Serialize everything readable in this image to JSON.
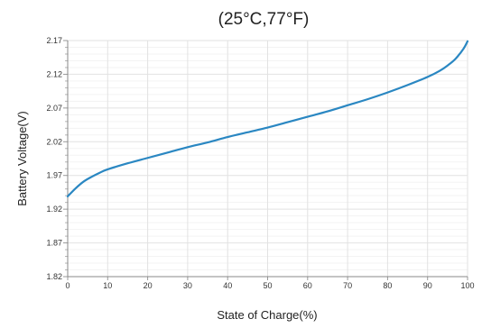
{
  "chart_data": {
    "type": "line",
    "title": "(25°C,77°F)",
    "xlabel": "State of Charge(%)",
    "ylabel": "Battery Voltage(V)",
    "xlim": [
      0,
      100
    ],
    "ylim": [
      1.82,
      2.17
    ],
    "x_ticks": [
      "0",
      "10",
      "20",
      "30",
      "40",
      "50",
      "60",
      "70",
      "80",
      "90",
      "100"
    ],
    "y_ticks": [
      "1.82",
      "1.87",
      "1.92",
      "1.97",
      "2.02",
      "2.07",
      "2.12",
      "2.17"
    ],
    "grid": true,
    "line_color": "#2a87c2",
    "series": [
      {
        "x": [
          0,
          2,
          4,
          6,
          8,
          10,
          15,
          20,
          25,
          30,
          35,
          40,
          45,
          50,
          55,
          60,
          65,
          70,
          75,
          80,
          85,
          90,
          93,
          95,
          97,
          99,
          100
        ],
        "y": [
          1.939,
          1.951,
          1.961,
          1.968,
          1.974,
          1.979,
          1.988,
          1.996,
          2.004,
          2.012,
          2.019,
          2.027,
          2.034,
          2.041,
          2.049,
          2.057,
          2.065,
          2.074,
          2.083,
          2.093,
          2.104,
          2.116,
          2.125,
          2.133,
          2.143,
          2.158,
          2.169
        ]
      }
    ]
  }
}
